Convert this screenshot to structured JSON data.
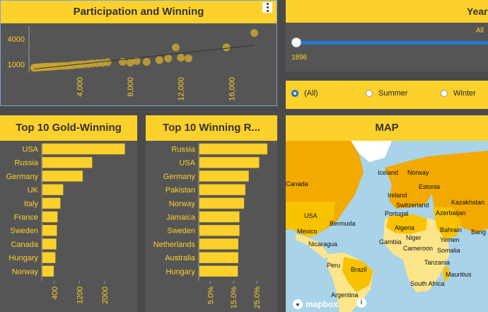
{
  "scatter": {
    "title": "Participation and Winning",
    "menu_icon": "more-vertical-icon"
  },
  "year_filter": {
    "title": "Year",
    "range_label": "All",
    "start_value": "1896"
  },
  "season_filter": {
    "options": [
      "(All)",
      "Summer",
      "Winter"
    ],
    "selected": "(All)"
  },
  "gold_panel": {
    "title": "Top 10 Gold-Winning"
  },
  "rate_panel": {
    "title": "Top 10 Winning R..."
  },
  "map_panel": {
    "title": "MAP",
    "attribution": "mapbox",
    "labels": [
      "Canada",
      "Iceland",
      "Norway",
      "Estonia",
      "Ireland",
      "Switzerland",
      "Kazakhstan",
      "Portugal",
      "Azerbaijan",
      "USA",
      "Bermuda",
      "Algeria",
      "Bahrain",
      "Bang",
      "Mexico",
      "Yemen",
      "Nicaragua",
      "Gambia",
      "Niger",
      "Cameroon",
      "Somalia",
      "Peru",
      "Brazil",
      "Tanzania",
      "Mauritius",
      "South Africa",
      "Argentina"
    ]
  },
  "chart_data": [
    {
      "type": "scatter",
      "title": "Participation and Winning",
      "x_ticks": [
        "4,000",
        "8,000",
        "12,000",
        "16,000"
      ],
      "y_ticks": [
        "1000",
        "4000"
      ],
      "xlim": [
        0,
        19000
      ],
      "ylim": [
        0,
        5500
      ],
      "points": [
        [
          400,
          600
        ],
        [
          500,
          620
        ],
        [
          600,
          640
        ],
        [
          700,
          650
        ],
        [
          800,
          660
        ],
        [
          900,
          670
        ],
        [
          1000,
          680
        ],
        [
          1100,
          700
        ],
        [
          1200,
          690
        ],
        [
          1300,
          710
        ],
        [
          1400,
          720
        ],
        [
          1500,
          700
        ],
        [
          1600,
          730
        ],
        [
          1800,
          740
        ],
        [
          2000,
          760
        ],
        [
          2200,
          780
        ],
        [
          2500,
          800
        ],
        [
          2800,
          820
        ],
        [
          3100,
          830
        ],
        [
          3400,
          900
        ],
        [
          3700,
          950
        ],
        [
          4000,
          980
        ],
        [
          4300,
          1000
        ],
        [
          4700,
          1050
        ],
        [
          5000,
          1100
        ],
        [
          5400,
          1150
        ],
        [
          5800,
          1180
        ],
        [
          6200,
          1250
        ],
        [
          7400,
          1300
        ],
        [
          8000,
          1200
        ],
        [
          8500,
          1400
        ],
        [
          9300,
          1300
        ],
        [
          10300,
          1500
        ],
        [
          11000,
          1700
        ],
        [
          11600,
          3000
        ],
        [
          12000,
          1800
        ],
        [
          12600,
          1700
        ],
        [
          15600,
          3000
        ],
        [
          17800,
          4700
        ]
      ],
      "trendline": [
        [
          400,
          450
        ],
        [
          17800,
          3250
        ]
      ]
    },
    {
      "type": "bar",
      "title": "Top 10 Gold-Winning",
      "categories": [
        "USA",
        "Russia",
        "Germany",
        "UK",
        "Italy",
        "France",
        "Sweden",
        "Canada",
        "Hungary",
        "Norway"
      ],
      "values": [
        2640,
        1600,
        1300,
        680,
        590,
        500,
        480,
        460,
        430,
        380
      ],
      "x_ticks": [
        "400",
        "1200",
        "2000"
      ],
      "xlim": [
        0,
        2900
      ]
    },
    {
      "type": "bar",
      "title": "Top 10 Winning R...",
      "categories": [
        "Russia",
        "USA",
        "Germany",
        "Pakistan",
        "Norway",
        "Jamaica",
        "Sweden",
        "Netherlands",
        "Australia",
        "Hungary"
      ],
      "values": [
        29.5,
        26.0,
        21.5,
        20.0,
        19.5,
        17.5,
        17.5,
        17.0,
        17.0,
        16.8
      ],
      "x_ticks": [
        "5.0%",
        "15.0%",
        "25.0%"
      ],
      "xlim": [
        0,
        32
      ]
    }
  ]
}
